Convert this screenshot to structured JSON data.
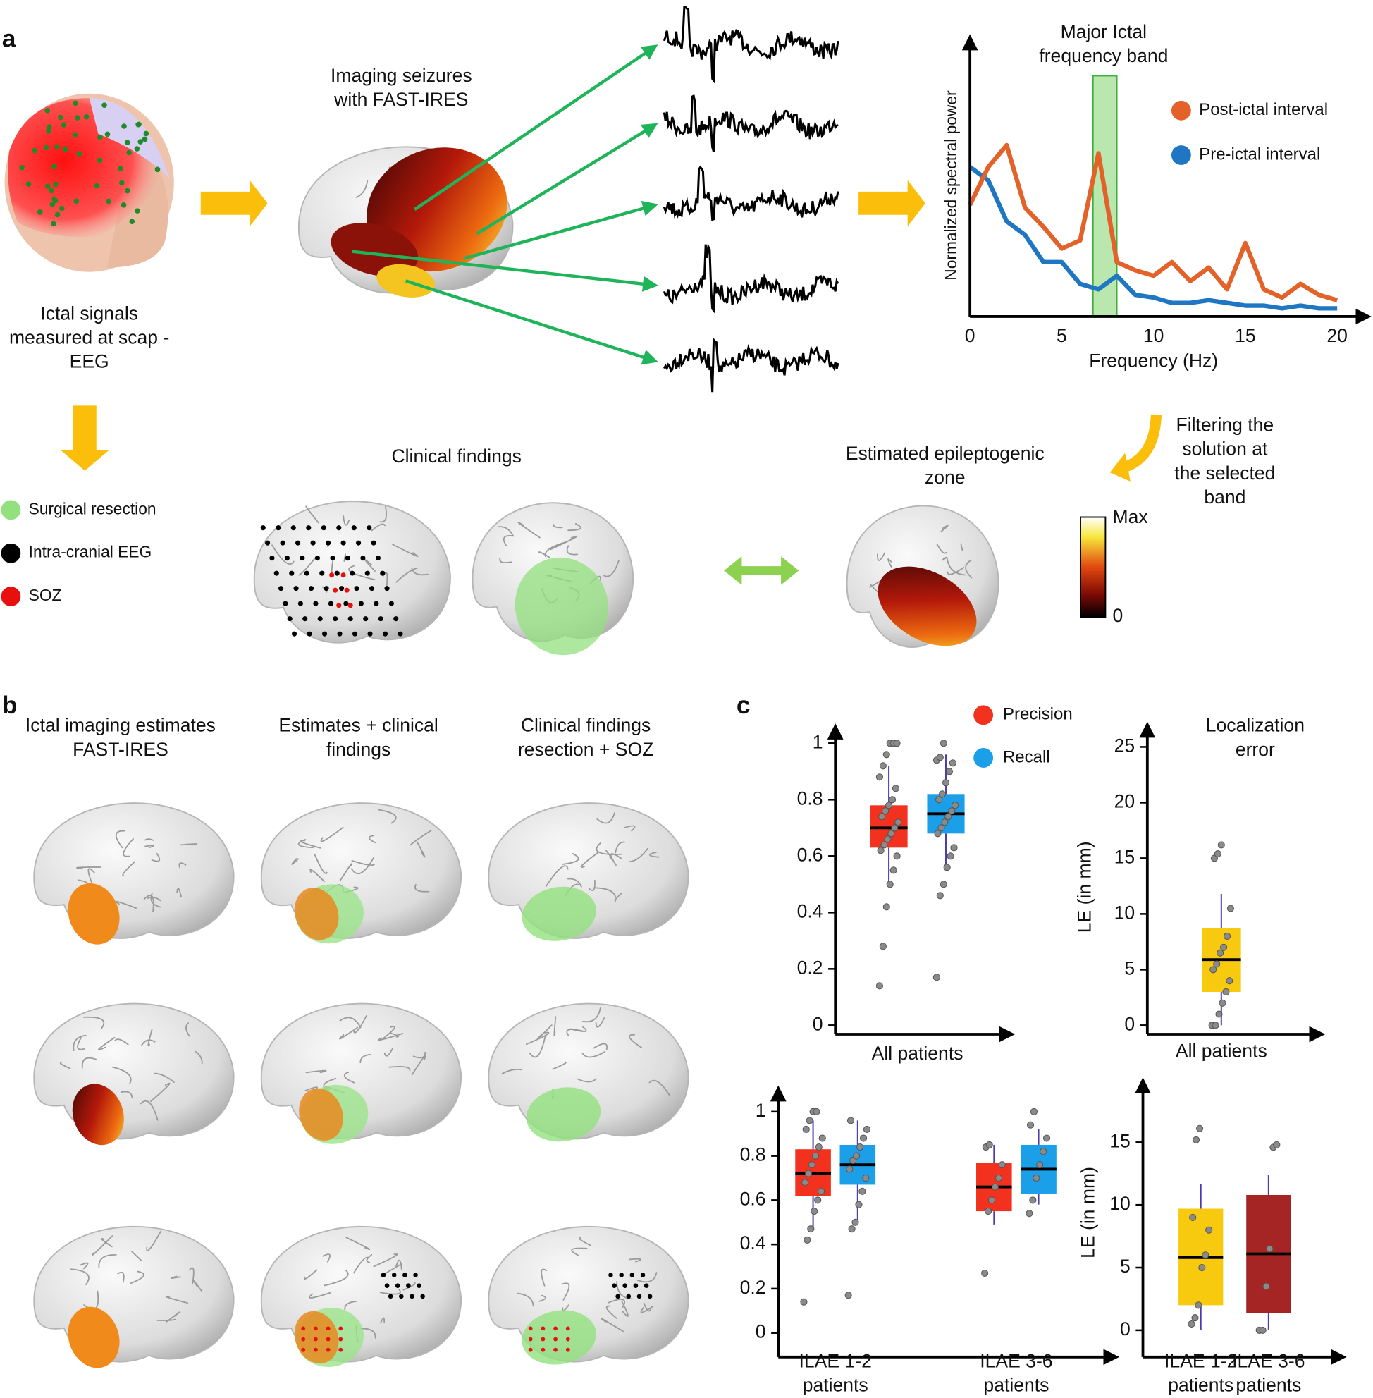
{
  "panel_labels": [
    "a",
    "b",
    "c"
  ],
  "panel_a": {
    "eeg_caption": [
      "Ictal signals",
      "measured at scap -",
      "EEG"
    ],
    "imaging_caption": [
      "Imaging seizures",
      "with FAST-IRES"
    ],
    "filtering_caption": [
      "Filtering the",
      "solution at",
      "the selected",
      "band"
    ],
    "clinical_caption": "Clinical findings",
    "ez_caption": [
      "Estimated epileptogenic",
      "zone"
    ],
    "colorbar": {
      "max_label": "Max",
      "min_label": "0"
    },
    "legend": [
      {
        "name": "Surgical resection",
        "color": "#92e07e"
      },
      {
        "name": "Intra-cranial EEG",
        "color": "#000000"
      },
      {
        "name": "SOZ",
        "color": "#e8100f"
      }
    ]
  },
  "panel_b": {
    "column_titles": [
      [
        "Ictal imaging estimates",
        "FAST-IRES"
      ],
      [
        "Estimates + clinical",
        "findings"
      ],
      [
        "Clinical findings",
        "resection + SOZ"
      ]
    ]
  },
  "chart_data": [
    {
      "type": "line",
      "title": [
        "Major Ictal",
        "frequency band"
      ],
      "xlabel": "Frequency (Hz)",
      "ylabel": "Normalized spectral power",
      "x": [
        0,
        1,
        2,
        3,
        4,
        5,
        6,
        7,
        8,
        9,
        10,
        11,
        12,
        13,
        14,
        15,
        16,
        17,
        18,
        19,
        20
      ],
      "xlim": [
        0,
        21.7
      ],
      "ylim": [
        0,
        1
      ],
      "xticks": [
        0,
        5,
        10,
        15,
        20
      ],
      "highlight_band": [
        6.7,
        8.0
      ],
      "highlight_color": "#7fd36a",
      "legend_position": "upper right",
      "series": [
        {
          "name": "Post-ictal interval",
          "color": "#e2622a",
          "values": [
            0.41,
            0.55,
            0.63,
            0.4,
            0.33,
            0.25,
            0.28,
            0.6,
            0.2,
            0.17,
            0.15,
            0.2,
            0.13,
            0.18,
            0.1,
            0.27,
            0.1,
            0.07,
            0.12,
            0.08,
            0.06
          ]
        },
        {
          "name": "Pre-ictal interval",
          "color": "#1f77c4",
          "values": [
            0.55,
            0.5,
            0.35,
            0.3,
            0.2,
            0.2,
            0.12,
            0.1,
            0.15,
            0.08,
            0.07,
            0.05,
            0.05,
            0.06,
            0.05,
            0.04,
            0.04,
            0.03,
            0.04,
            0.03,
            0.03
          ]
        }
      ]
    },
    {
      "type": "box",
      "categories": [
        [
          "All patients"
        ]
      ],
      "ylim": [
        0,
        1.04
      ],
      "yticks": [
        0,
        0.2,
        0.4,
        0.6,
        0.8,
        1
      ],
      "legend_position": "upper right",
      "series": [
        {
          "name": "Precision",
          "color": "#f2321f",
          "boxes": [
            {
              "whislo": 0.49,
              "q1": 0.63,
              "med": 0.7,
              "q3": 0.78,
              "whishi": 0.92,
              "points": [
                0.14,
                0.28,
                0.42,
                0.5,
                0.55,
                0.6,
                0.62,
                0.64,
                0.66,
                0.68,
                0.7,
                0.72,
                0.74,
                0.76,
                0.78,
                0.8,
                0.84,
                0.88,
                0.92,
                0.96,
                1,
                1,
                1
              ]
            }
          ]
        },
        {
          "name": "Recall",
          "color": "#1a9fe8",
          "boxes": [
            {
              "whislo": 0.57,
              "q1": 0.68,
              "med": 0.75,
              "q3": 0.82,
              "whishi": 0.96,
              "points": [
                0.17,
                0.46,
                0.5,
                0.56,
                0.6,
                0.63,
                0.68,
                0.7,
                0.72,
                0.74,
                0.76,
                0.78,
                0.8,
                0.82,
                0.86,
                0.9,
                0.93,
                0.94,
                0.95,
                1
              ]
            }
          ]
        }
      ]
    },
    {
      "type": "box",
      "title": [
        "Localization",
        "error"
      ],
      "ylabel": "LE (in mm)",
      "categories": [
        [
          "All patients"
        ]
      ],
      "ylim": [
        0,
        26.5
      ],
      "yticks": [
        0,
        5,
        10,
        15,
        20,
        25
      ],
      "series": [
        {
          "boxes": [
            {
              "color": "#f7c90f",
              "whislo": 0,
              "q1": 3,
              "med": 5.9,
              "q3": 8.7,
              "whishi": 11.8,
              "points": [
                0,
                0,
                1,
                2,
                3,
                4,
                5,
                5.5,
                6.5,
                7,
                8,
                10.5,
                15,
                15.4,
                16.2
              ]
            }
          ]
        }
      ]
    },
    {
      "type": "box",
      "categories": [
        [
          "ILAE 1-2",
          "patients"
        ],
        [
          "ILAE 3-6",
          "patients"
        ]
      ],
      "ylim": [
        0,
        1.08
      ],
      "yticks": [
        0,
        0.2,
        0.4,
        0.6,
        0.8,
        1
      ],
      "series": [
        {
          "color": "#f2321f",
          "boxes": [
            {
              "whislo": 0.47,
              "q1": 0.62,
              "med": 0.72,
              "q3": 0.83,
              "whishi": 0.96,
              "points": [
                0.14,
                0.42,
                0.47,
                0.55,
                0.6,
                0.64,
                0.68,
                0.72,
                0.76,
                0.8,
                0.84,
                0.88,
                0.92,
                0.96,
                1,
                1
              ]
            },
            {
              "whislo": 0.49,
              "q1": 0.55,
              "med": 0.66,
              "q3": 0.77,
              "whishi": 0.85,
              "points": [
                0.27,
                0.55,
                0.6,
                0.66,
                0.7,
                0.76,
                0.84,
                0.85
              ]
            }
          ]
        },
        {
          "color": "#1a9fe8",
          "boxes": [
            {
              "whislo": 0.5,
              "q1": 0.67,
              "med": 0.76,
              "q3": 0.85,
              "whishi": 0.96,
              "points": [
                0.17,
                0.47,
                0.5,
                0.58,
                0.64,
                0.7,
                0.74,
                0.78,
                0.8,
                0.84,
                0.88,
                0.92,
                0.96
              ]
            },
            {
              "whislo": 0.58,
              "q1": 0.63,
              "med": 0.74,
              "q3": 0.85,
              "whishi": 0.92,
              "points": [
                0.54,
                0.6,
                0.7,
                0.76,
                0.82,
                0.88,
                0.94,
                1
              ]
            }
          ]
        }
      ]
    },
    {
      "type": "box",
      "ylabel": "LE (in mm)",
      "categories": [
        [
          "ILAE 1-2",
          "patients"
        ],
        [
          "ILAE 3-6",
          "patients"
        ]
      ],
      "ylim": [
        0,
        19.5
      ],
      "yticks": [
        0,
        5,
        10,
        15
      ],
      "series": [
        {
          "boxes": [
            {
              "color": "#f7c90f",
              "whislo": 0,
              "q1": 2,
              "med": 5.8,
              "q3": 9.7,
              "whishi": 11.7,
              "points": [
                0.5,
                1,
                2,
                5,
                6,
                8,
                9,
                15.2,
                16.1
              ]
            },
            {
              "color": "#a52424",
              "whislo": 0,
              "q1": 1.4,
              "med": 6.1,
              "q3": 10.8,
              "whishi": 12.4,
              "points": [
                0,
                0,
                3.5,
                6.5,
                14.6,
                14.8
              ]
            }
          ]
        }
      ]
    }
  ]
}
